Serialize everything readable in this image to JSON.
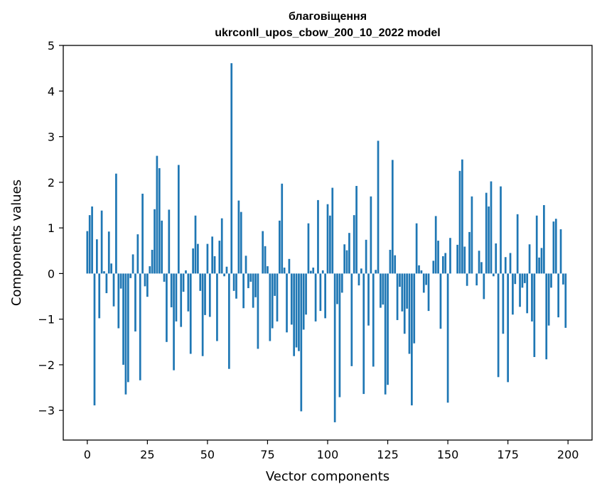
{
  "chart_data": {
    "type": "bar",
    "title_line1": "благовіщення",
    "title_line2": "ukrconll_upos_cbow_200_10_2022 model",
    "xlabel": "Vector components",
    "ylabel": "Components values",
    "xlim": [
      -10,
      210
    ],
    "ylim": [
      -3.65,
      5.0
    ],
    "xticks": [
      0,
      25,
      50,
      75,
      100,
      125,
      150,
      175,
      200
    ],
    "yticks": [
      -3,
      -2,
      -1,
      0,
      1,
      2,
      3,
      4,
      5
    ],
    "grid": false,
    "bar_color": "#1f77b4",
    "values": [
      0.93,
      1.28,
      1.47,
      -2.89,
      0.75,
      -0.98,
      1.38,
      0.05,
      -0.43,
      0.92,
      0.22,
      -0.72,
      2.19,
      -1.2,
      -0.33,
      -2.0,
      -2.65,
      -2.38,
      -0.1,
      0.42,
      -1.27,
      0.86,
      -2.34,
      1.75,
      -0.28,
      -0.51,
      0.16,
      0.52,
      1.41,
      2.58,
      2.31,
      1.16,
      -0.18,
      -1.5,
      1.4,
      -0.74,
      -2.12,
      -1.05,
      2.38,
      -1.17,
      -0.4,
      0.07,
      -0.83,
      -1.76,
      0.55,
      1.27,
      0.65,
      -0.38,
      -1.81,
      -0.91,
      0.65,
      -0.95,
      0.81,
      0.38,
      -1.48,
      0.72,
      1.21,
      -0.06,
      0.15,
      -2.09,
      4.61,
      -0.38,
      -0.55,
      1.6,
      1.35,
      -0.76,
      0.39,
      -0.32,
      -0.18,
      -0.75,
      -0.52,
      -1.65,
      0.0,
      0.93,
      0.6,
      0.16,
      -1.48,
      -1.2,
      -0.49,
      -1.05,
      1.16,
      1.97,
      0.13,
      -1.29,
      0.32,
      -1.12,
      -1.81,
      -1.62,
      -1.7,
      -3.02,
      -1.23,
      -0.9,
      1.1,
      0.06,
      0.13,
      -1.05,
      1.61,
      -0.82,
      0.07,
      -0.98,
      1.52,
      1.27,
      1.88,
      -3.26,
      -0.67,
      -2.71,
      -0.42,
      0.64,
      0.51,
      0.89,
      -2.03,
      1.28,
      1.92,
      -0.26,
      0.11,
      -2.64,
      0.74,
      -1.14,
      1.69,
      -2.04,
      0.08,
      2.91,
      -0.75,
      -0.68,
      -2.65,
      -2.44,
      0.52,
      2.49,
      0.4,
      -1.02,
      -0.29,
      -0.83,
      -1.32,
      -0.77,
      -1.76,
      -2.89,
      -1.53,
      1.1,
      0.18,
      0.07,
      -0.42,
      -0.25,
      -0.82,
      0.0,
      0.28,
      1.26,
      0.72,
      -1.21,
      0.38,
      0.45,
      -2.83,
      0.78,
      0.0,
      0.0,
      0.63,
      2.25,
      2.5,
      0.59,
      -0.27,
      0.91,
      1.69,
      0.0,
      -0.26,
      0.5,
      0.25,
      -0.56,
      1.77,
      1.47,
      2.02,
      -0.06,
      0.66,
      -2.27,
      1.91,
      -1.32,
      0.36,
      -2.38,
      0.45,
      -0.9,
      -0.23,
      1.3,
      -0.73,
      -0.31,
      -0.21,
      -0.87,
      0.64,
      -1.05,
      -1.83,
      1.27,
      0.35,
      0.56,
      1.5,
      -1.88,
      -1.14,
      -0.31,
      1.14,
      1.2,
      -0.96,
      0.97,
      -0.24,
      -1.19
    ]
  }
}
